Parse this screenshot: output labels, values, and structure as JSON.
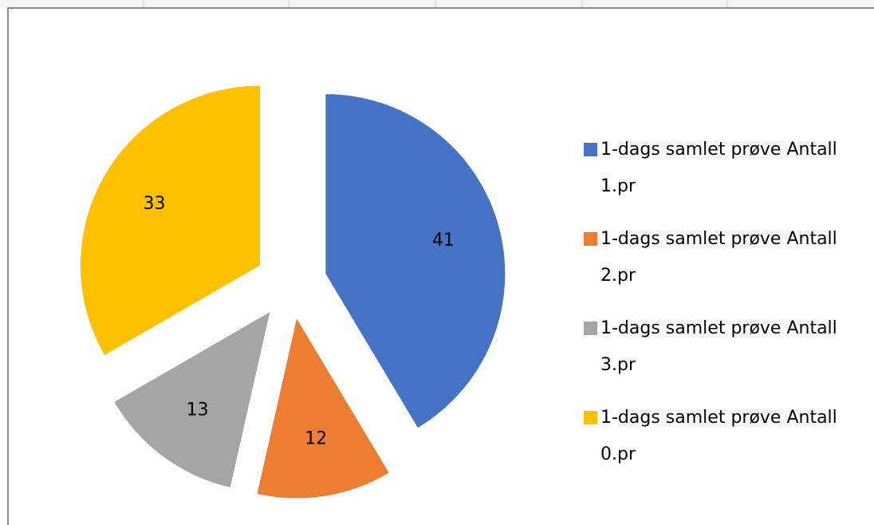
{
  "chart_data": {
    "type": "pie",
    "categories": [
      "1-dags samlet prøve Antall 1.pr",
      "1-dags samlet prøve Antall 2.pr",
      "1-dags samlet prøve Antall 3.pr",
      "1-dags samlet prøve Antall 0.pr"
    ],
    "values": [
      41,
      12,
      13,
      33
    ],
    "colors": [
      "#4472c4",
      "#ed7d31",
      "#a5a5a5",
      "#ffc000"
    ],
    "exploded": true,
    "legend": "right"
  }
}
